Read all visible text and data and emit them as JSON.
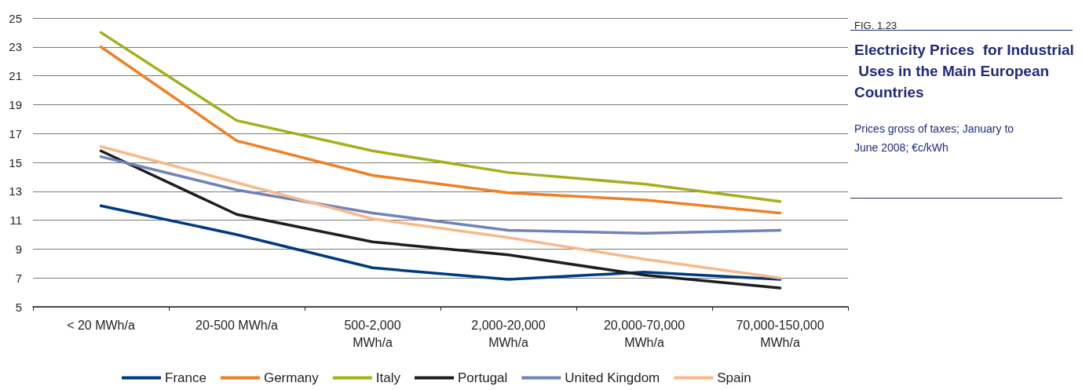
{
  "chart_data": {
    "type": "line",
    "title": "Electricity Prices  for Industrial Uses in the Main European Countries",
    "subtitle": "Prices gross of taxes; January to June 2008; €c/kWh",
    "annotations": [
      "FIG. 1.23"
    ],
    "categories": [
      "< 20 MWh/a",
      "20-500 MWh/a",
      "500-2,000 MWh/a",
      "2,000-20,000 MWh/a",
      "20,000-70,000 MWh/a",
      "70,000-150,000 MWh/a"
    ],
    "series": [
      {
        "name": "France",
        "color": "#003a80",
        "values": [
          12.0,
          10.0,
          7.7,
          6.9,
          7.4,
          6.9
        ]
      },
      {
        "name": "Germany",
        "color": "#f07f23",
        "values": [
          23.0,
          16.5,
          14.1,
          12.9,
          12.4,
          11.5
        ]
      },
      {
        "name": "Italy",
        "color": "#a3b01b",
        "values": [
          24.0,
          17.9,
          15.8,
          14.3,
          13.5,
          12.3
        ]
      },
      {
        "name": "Portugal",
        "color": "#1e1e1e",
        "values": [
          15.8,
          11.4,
          9.5,
          8.6,
          7.2,
          6.3
        ]
      },
      {
        "name": "United Kingdom",
        "color": "#7083b8",
        "values": [
          15.4,
          13.1,
          11.5,
          10.3,
          10.1,
          10.3
        ]
      },
      {
        "name": "Spain",
        "color": "#f8b98a",
        "values": [
          16.1,
          13.6,
          11.1,
          9.8,
          8.3,
          7.0
        ]
      }
    ],
    "ylim": [
      5,
      25
    ],
    "yticks": [
      5,
      7,
      9,
      11,
      13,
      15,
      17,
      19,
      21,
      23,
      25
    ],
    "grid": "y",
    "legend": "bottom",
    "marker": "none",
    "line_style": "solid"
  }
}
